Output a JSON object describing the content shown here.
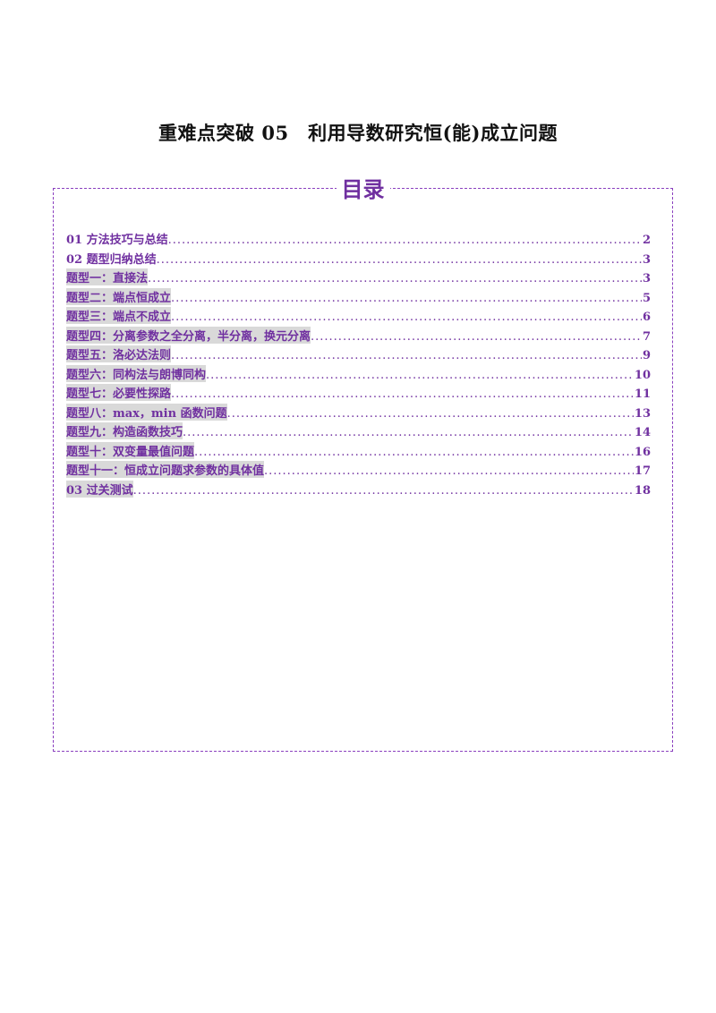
{
  "document": {
    "title": "重难点突破 05　利用导数研究恒(能)成立问题"
  },
  "toc": {
    "heading": "目录",
    "accent_color": "#7030a0",
    "entries": [
      {
        "label": "01 方法技巧与总结",
        "page": "2",
        "highlighted": false
      },
      {
        "label": "02 题型归纳总结",
        "page": "3",
        "highlighted": false
      },
      {
        "label": "题型一：直接法",
        "page": "3",
        "highlighted": true
      },
      {
        "label": "题型二：端点恒成立",
        "page": "5",
        "highlighted": true
      },
      {
        "label": "题型三：端点不成立",
        "page": "6",
        "highlighted": true
      },
      {
        "label": "题型四：分离参数之全分离，半分离，换元分离",
        "page": "7",
        "highlighted": true
      },
      {
        "label": "题型五：洛必达法则",
        "page": "9",
        "highlighted": true
      },
      {
        "label": "题型六：同构法与朗博同构",
        "page": "10",
        "highlighted": true
      },
      {
        "label": "题型七：必要性探路",
        "page": "11",
        "highlighted": true
      },
      {
        "label": "题型八：max，min 函数问题",
        "page": "13",
        "highlighted": true
      },
      {
        "label": "题型九：构造函数技巧",
        "page": "14",
        "highlighted": true
      },
      {
        "label": "题型十：双变量最值问题",
        "page": "16",
        "highlighted": true
      },
      {
        "label": "题型十一：恒成立问题求参数的具体值",
        "page": "17",
        "highlighted": true
      },
      {
        "label": "03 过关测试",
        "page": "18",
        "highlighted": true
      }
    ]
  }
}
